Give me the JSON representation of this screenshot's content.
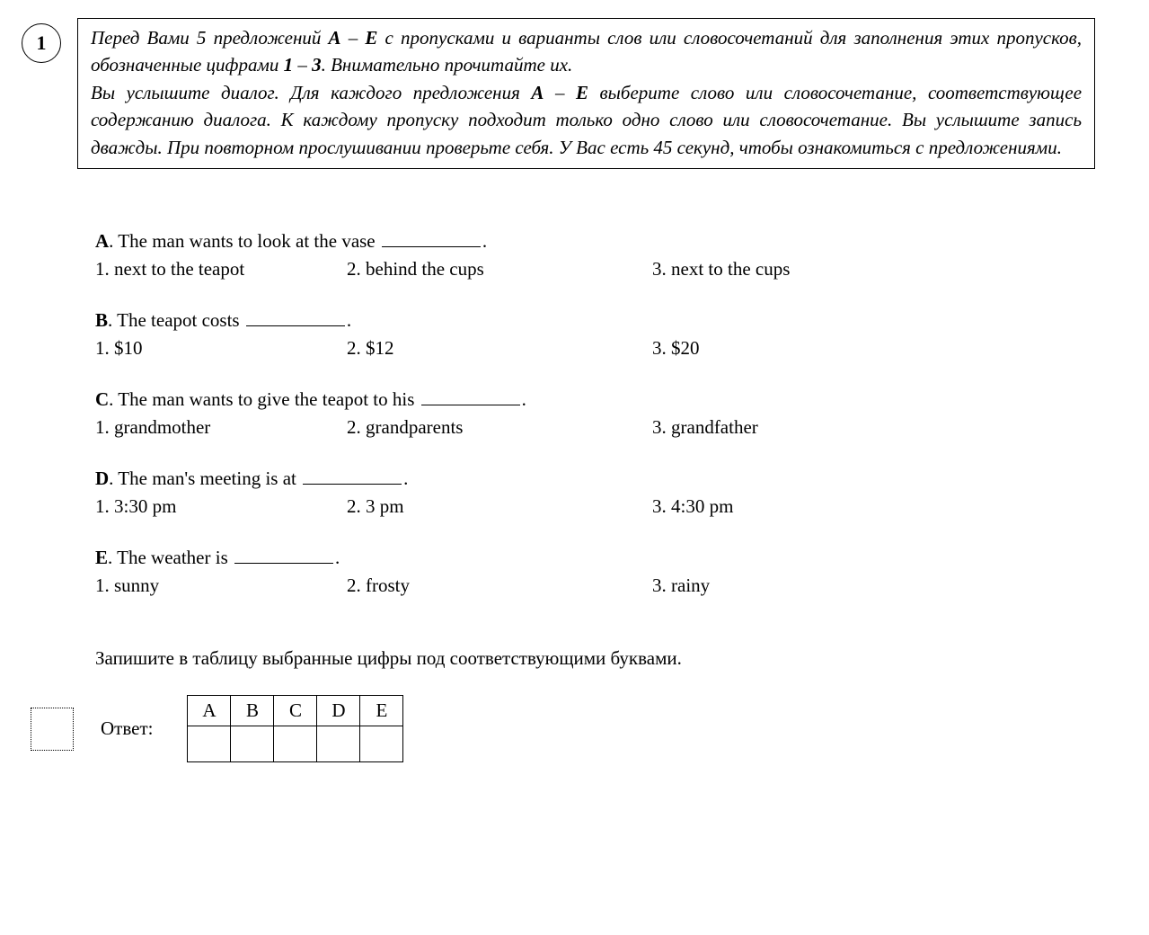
{
  "task_number": "1",
  "instructions": {
    "p1_a": "Перед Вами 5 предложений ",
    "p1_b1": "A",
    "p1_c": " – ",
    "p1_b2": "E",
    "p1_d": " с пропусками и варианты слов или словосочетаний для заполнения этих пропусков, обозначенные цифрами ",
    "p1_b3": "1",
    "p1_e": " – ",
    "p1_b4": "3",
    "p1_f": ". Внимательно прочитайте их.",
    "p2_a": "Вы услышите диалог. Для каждого предложения ",
    "p2_b1": "A",
    "p2_c": " – ",
    "p2_b2": "E",
    "p2_d": " выберите слово или словосочетание, соответствующее содержанию диалога. К каждому пропуску подходит только одно слово или словосочетание. Вы услышите запись дважды. При повторном прослушивании проверьте себя. У Вас есть 45 секунд, чтобы ознакомиться с предложениями."
  },
  "questions": [
    {
      "letter": "A",
      "stem": ". The man wants to look at the vase ",
      "tail": ".",
      "opts": [
        "1. next to the teapot",
        "2. behind the cups",
        "3. next to the cups"
      ]
    },
    {
      "letter": "B",
      "stem": ". The teapot costs ",
      "tail": ".",
      "opts": [
        "1. $10",
        "2. $12",
        "3. $20"
      ]
    },
    {
      "letter": "C",
      "stem": ". The man wants to give the teapot to his ",
      "tail": ".",
      "opts": [
        "1. grandmother",
        "2. grandparents",
        "3. grandfather"
      ]
    },
    {
      "letter": "D",
      "stem": ". The man's meeting is at ",
      "tail": ".",
      "opts": [
        "1. 3:30 pm",
        "2. 3 pm",
        "3. 4:30 pm"
      ]
    },
    {
      "letter": "E",
      "stem": ". The weather is ",
      "tail": ".",
      "opts": [
        "1. sunny",
        "2. frosty",
        "3. rainy"
      ]
    }
  ],
  "table_instruction": "Запишите в таблицу выбранные цифры под соответствующими буквами.",
  "answer_label": "Ответ:",
  "answer_headers": [
    "A",
    "B",
    "C",
    "D",
    "E"
  ],
  "answer_values": [
    "",
    "",
    "",
    "",
    ""
  ]
}
